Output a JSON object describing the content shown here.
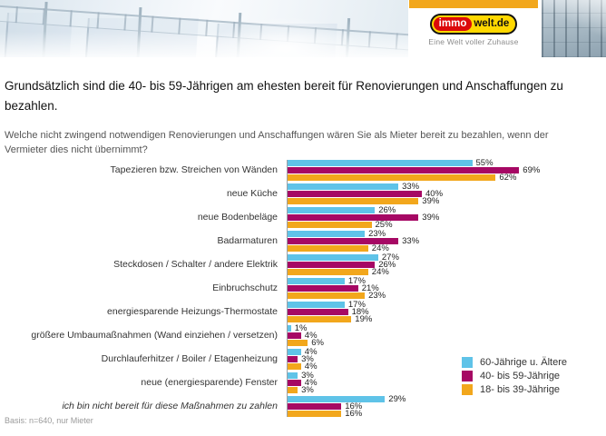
{
  "header": {
    "logo": {
      "immo": "immo",
      "welt": "welt.de",
      "tagline": "Eine Welt voller Zuhause"
    },
    "accent_color": "#F2A71C"
  },
  "title": "Grundsätzlich sind die 40- bis 59-Jährigen am ehesten bereit für Renovierungen und Anschaffungen zu bezahlen.",
  "question": "Welche nicht zwingend notwendigen Renovierungen und Anschaffungen wären Sie als Mieter bereit zu bezahlen, wenn der Vermieter dies nicht übernimmt?",
  "chart_data": {
    "type": "bar",
    "orientation": "horizontal",
    "unit": "%",
    "categories": [
      "Tapezieren bzw. Streichen von Wänden",
      "neue Küche",
      "neue Bodenbeläge",
      "Badarmaturen",
      "Steckdosen / Schalter / andere Elektrik",
      "Einbruchschutz",
      "energiesparende Heizungs-Thermostate",
      "größere Umbaumaßnahmen (Wand einziehen / versetzen)",
      "Durchlauferhitzer / Boiler / Etagenheizung",
      "neue (energiesparende) Fenster",
      "ich bin nicht bereit für diese Maßnahmen zu zahlen"
    ],
    "last_category_italic": true,
    "series": [
      {
        "name": "60-Jährige u. Ältere",
        "color": "#5FC3E8",
        "values": [
          55,
          33,
          26,
          23,
          27,
          17,
          17,
          1,
          4,
          3,
          29
        ]
      },
      {
        "name": "40- bis 59-Jährige",
        "color": "#A60864",
        "values": [
          69,
          40,
          39,
          33,
          26,
          21,
          18,
          4,
          3,
          4,
          16
        ]
      },
      {
        "name": "18- bis 39-Jährige",
        "color": "#F2A71C",
        "values": [
          62,
          39,
          25,
          24,
          24,
          23,
          19,
          6,
          4,
          3,
          16
        ]
      }
    ],
    "xlim": [
      0,
      100
    ],
    "value_labels": true,
    "legend_position": "bottom-right",
    "grid": false
  },
  "footer": "Basis: n=640, nur Mieter"
}
